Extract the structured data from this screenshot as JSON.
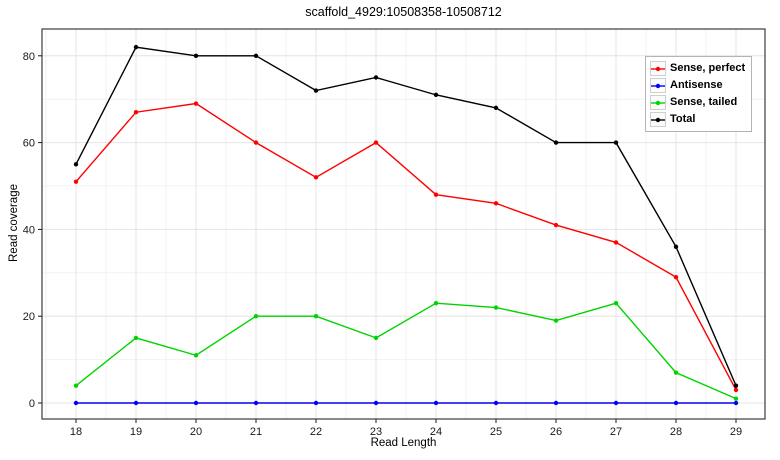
{
  "chart_data": {
    "type": "line",
    "title": "scaffold_4929:10508358-10508712",
    "xlabel": "Read Length",
    "ylabel": "Read coverage",
    "x": [
      18,
      19,
      20,
      21,
      22,
      23,
      24,
      25,
      26,
      27,
      28,
      29
    ],
    "series": [
      {
        "name": "Sense, perfect",
        "color": "#ff0000",
        "values": [
          51,
          67,
          69,
          60,
          52,
          60,
          48,
          46,
          41,
          37,
          29,
          3
        ]
      },
      {
        "name": "Antisense",
        "color": "#0000ff",
        "values": [
          0,
          0,
          0,
          0,
          0,
          0,
          0,
          0,
          0,
          0,
          0,
          0
        ]
      },
      {
        "name": "Sense, tailed",
        "color": "#00d400",
        "values": [
          4,
          15,
          11,
          20,
          20,
          15,
          23,
          22,
          19,
          23,
          7,
          1
        ]
      },
      {
        "name": "Total",
        "color": "#000000",
        "values": [
          55,
          82,
          80,
          80,
          72,
          75,
          71,
          68,
          60,
          60,
          36,
          4
        ]
      }
    ],
    "yticks": [
      0,
      20,
      40,
      60,
      80
    ],
    "xticks": [
      18,
      19,
      20,
      21,
      22,
      23,
      24,
      25,
      26,
      27,
      28,
      29
    ],
    "ylim": [
      -4,
      86
    ],
    "xlim": [
      17.4,
      29.5
    ],
    "grid": true,
    "minor_grid": true,
    "legend_position": "top-right",
    "marker": "circle",
    "panel_border_color": "#3c3c3c",
    "major_grid_color": "#e4e4e4",
    "minor_grid_color": "#f2f2f2",
    "tick_label_color": "#1a1a1a"
  }
}
